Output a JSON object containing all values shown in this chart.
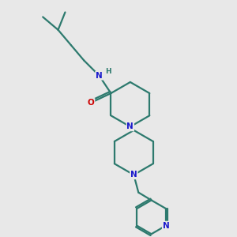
{
  "bg_color": "#e8e8e8",
  "bond_color": "#2d7a6e",
  "N_color": "#1a1acc",
  "O_color": "#cc0000",
  "line_width": 1.6,
  "fig_size": [
    3.0,
    3.0
  ],
  "dpi": 100,
  "xlim": [
    0,
    10
  ],
  "ylim": [
    0,
    10
  ]
}
